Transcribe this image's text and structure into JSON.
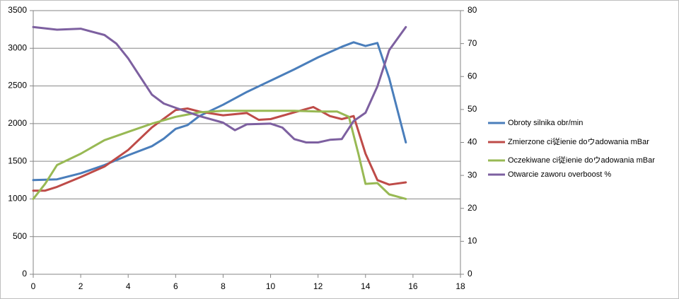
{
  "chart_data": {
    "type": "line",
    "xlim": [
      0,
      18
    ],
    "xticks": [
      0,
      2,
      4,
      6,
      8,
      10,
      12,
      14,
      16,
      18
    ],
    "ylim": [
      0,
      3500
    ],
    "yticks": [
      0,
      500,
      1000,
      1500,
      2000,
      2500,
      3000,
      3500
    ],
    "y2lim": [
      0,
      80
    ],
    "y2ticks": [
      0,
      10,
      20,
      30,
      40,
      50,
      60,
      70,
      80
    ],
    "grid": true,
    "legend": "right",
    "series": [
      {
        "name": "Obroty silnika obr/min",
        "color": "#4a7ebb",
        "x": [
          0,
          1,
          2,
          3,
          4,
          5,
          5.5,
          6,
          6.5,
          7,
          8,
          9,
          10,
          11,
          12,
          13,
          13.5,
          14,
          14.5,
          15,
          15.7
        ],
        "values": [
          1250,
          1260,
          1340,
          1450,
          1580,
          1700,
          1800,
          1930,
          1980,
          2100,
          2250,
          2420,
          2570,
          2720,
          2880,
          3020,
          3080,
          3030,
          3070,
          2600,
          1750
        ]
      },
      {
        "name": "Zmierzone ci従ienie doウadowania mBar",
        "color": "#be4b48",
        "x": [
          0,
          0.5,
          1,
          2,
          3,
          4,
          5,
          6,
          6.5,
          7,
          8,
          9,
          9.5,
          10,
          11,
          11.8,
          12.5,
          13,
          13.5,
          14,
          14.5,
          15,
          15.7
        ],
        "values": [
          1110,
          1110,
          1160,
          1290,
          1430,
          1650,
          1950,
          2180,
          2200,
          2160,
          2110,
          2140,
          2050,
          2060,
          2150,
          2220,
          2100,
          2060,
          2100,
          1600,
          1250,
          1190,
          1220
        ]
      },
      {
        "name": "Oczekiwane ci従ienie doウadowania mBar",
        "color": "#98b954",
        "x": [
          0,
          0.5,
          1,
          2,
          3,
          4,
          5,
          6,
          7,
          8,
          9,
          10,
          11,
          12,
          12.8,
          13.3,
          13.7,
          14,
          14.5,
          15,
          15.7
        ],
        "values": [
          1000,
          1200,
          1450,
          1600,
          1780,
          1890,
          2000,
          2090,
          2150,
          2170,
          2170,
          2170,
          2170,
          2160,
          2160,
          2090,
          1600,
          1200,
          1210,
          1060,
          1000
        ]
      },
      {
        "name": "Otwarcie zaworu overboost %",
        "color": "#7d60a0",
        "axis": "y2",
        "x": [
          0,
          1,
          2,
          3,
          3.5,
          4,
          4.5,
          5,
          5.5,
          6,
          7,
          8,
          8.5,
          9,
          10,
          10.5,
          11,
          11.5,
          12,
          12.5,
          13,
          13.5,
          14,
          14.5,
          15,
          15.7
        ],
        "values": [
          75,
          74.2,
          74.5,
          72.6,
          70,
          65.5,
          60,
          54.5,
          51.8,
          50.5,
          48,
          46,
          43.7,
          45.5,
          45.7,
          44.5,
          41,
          40,
          40,
          40.8,
          41,
          46.5,
          49,
          57,
          68,
          75
        ]
      }
    ]
  }
}
